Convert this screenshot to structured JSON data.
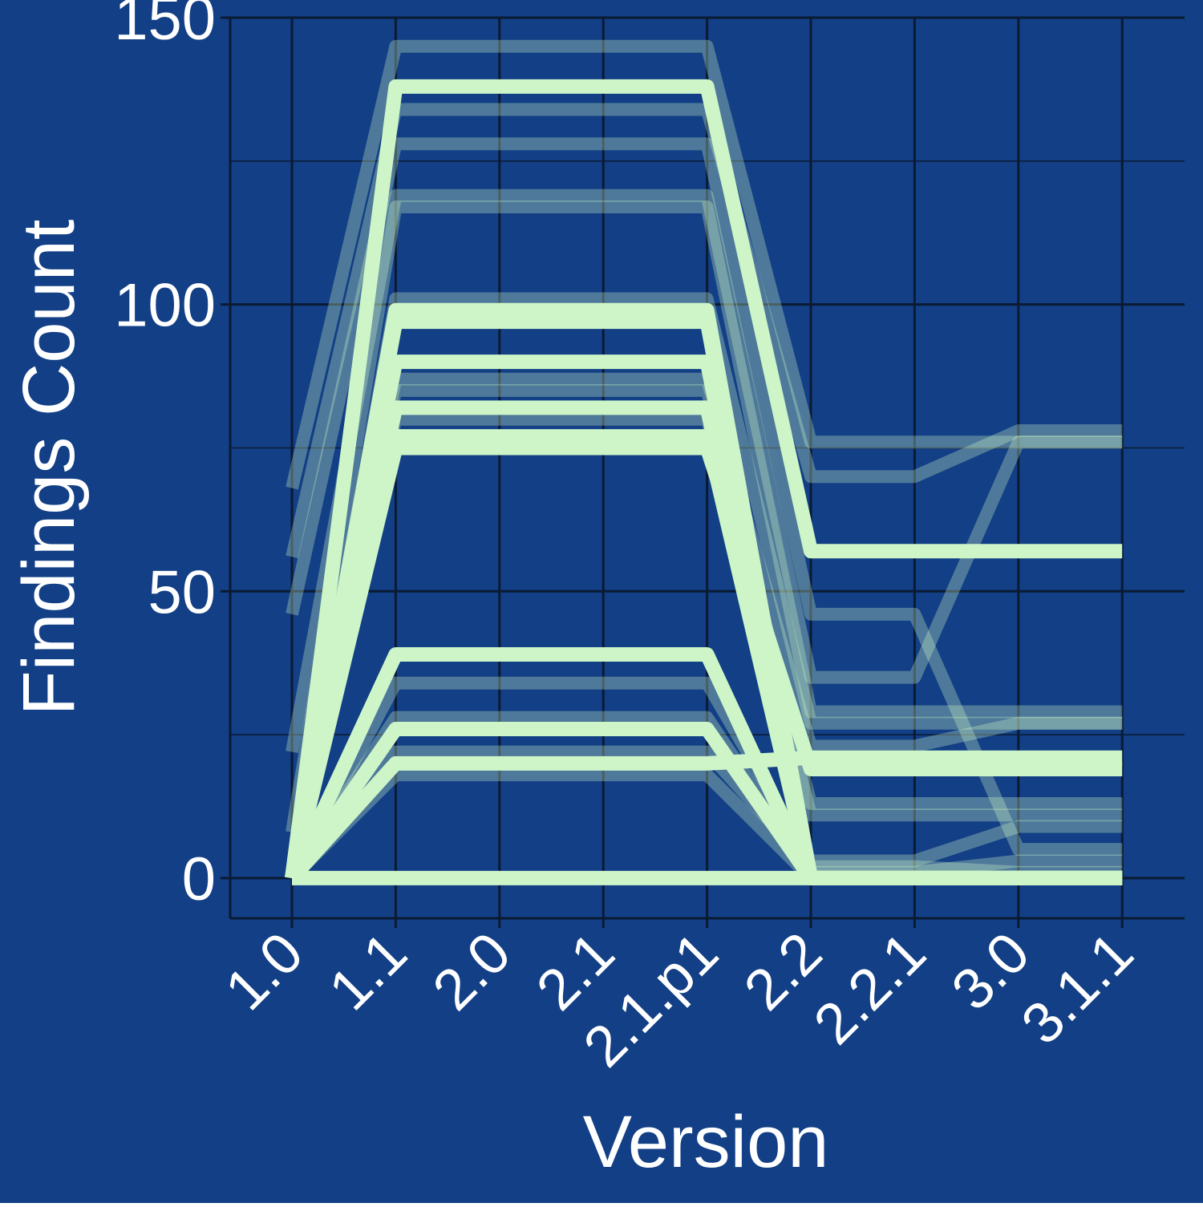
{
  "colors": {
    "background": "#123f85",
    "grid": "#0b1a33",
    "line": "#cdf5c8",
    "text": "#ffffff"
  },
  "chart_data": {
    "type": "line",
    "title": "",
    "xlabel": "Version",
    "ylabel": "Findings Count",
    "categories": [
      "1.0",
      "1.1",
      "2.0",
      "2.1",
      "2.1.p1",
      "2.2",
      "2.2.1",
      "3.0",
      "3.1.1"
    ],
    "ylim": [
      -7,
      150
    ],
    "yticks": [
      0,
      50,
      100,
      150
    ],
    "grid": true,
    "legend": "none",
    "series": [
      {
        "values": [
          0,
          138,
          138,
          138,
          138,
          57,
          57,
          57,
          57
        ],
        "emphasis": true
      },
      {
        "values": [
          0,
          99,
          99,
          99,
          99,
          0,
          0,
          0,
          0
        ],
        "emphasis": true
      },
      {
        "values": [
          0,
          98,
          98,
          98,
          98,
          0,
          0,
          0,
          0
        ],
        "emphasis": true
      },
      {
        "values": [
          0,
          97,
          97,
          97,
          97,
          0,
          0,
          0,
          0
        ],
        "emphasis": true
      },
      {
        "values": [
          0,
          90,
          90,
          90,
          90,
          0,
          0,
          0,
          0
        ],
        "emphasis": true
      },
      {
        "values": [
          0,
          82,
          82,
          82,
          82,
          0,
          0,
          0,
          0
        ],
        "emphasis": true
      },
      {
        "values": [
          0,
          77,
          77,
          77,
          77,
          0,
          0,
          0,
          0
        ],
        "emphasis": true
      },
      {
        "values": [
          0,
          75,
          75,
          75,
          75,
          19,
          19,
          19,
          19
        ],
        "emphasis": true
      },
      {
        "values": [
          0,
          39,
          39,
          39,
          39,
          0,
          0,
          0,
          0
        ],
        "emphasis": true
      },
      {
        "values": [
          0,
          26,
          26,
          26,
          26,
          0,
          0,
          0,
          0
        ],
        "emphasis": true
      },
      {
        "values": [
          0,
          20,
          20,
          20,
          20,
          21,
          21,
          21,
          21
        ],
        "emphasis": true
      },
      {
        "values": [
          0,
          0,
          0,
          0,
          0,
          0,
          0,
          0,
          0
        ],
        "emphasis": true
      },
      {
        "values": [
          68,
          145,
          145,
          145,
          145,
          76,
          76,
          76,
          76
        ],
        "emphasis": false
      },
      {
        "values": [
          56,
          134,
          134,
          134,
          134,
          70,
          70,
          78,
          78
        ],
        "emphasis": false
      },
      {
        "values": [
          46,
          128,
          128,
          128,
          128,
          46,
          46,
          5,
          5
        ],
        "emphasis": false
      },
      {
        "values": [
          22,
          119,
          119,
          119,
          119,
          35,
          35,
          76,
          76
        ],
        "emphasis": false
      },
      {
        "values": [
          8,
          117,
          117,
          117,
          117,
          29,
          29,
          29,
          29
        ],
        "emphasis": false
      },
      {
        "values": [
          0,
          101,
          101,
          101,
          101,
          27,
          27,
          27,
          27
        ],
        "emphasis": false
      },
      {
        "values": [
          0,
          87,
          87,
          87,
          87,
          23,
          23,
          27,
          27
        ],
        "emphasis": false
      },
      {
        "values": [
          0,
          85,
          85,
          85,
          85,
          13,
          13,
          13,
          13
        ],
        "emphasis": false
      },
      {
        "values": [
          0,
          80,
          80,
          80,
          80,
          11,
          11,
          11,
          11
        ],
        "emphasis": false
      },
      {
        "values": [
          0,
          34,
          34,
          34,
          34,
          3,
          3,
          9,
          9
        ],
        "emphasis": false
      },
      {
        "values": [
          0,
          28,
          28,
          28,
          28,
          1,
          1,
          3,
          3
        ],
        "emphasis": false
      },
      {
        "values": [
          0,
          22,
          22,
          22,
          22,
          2,
          2,
          1,
          1
        ],
        "emphasis": false
      },
      {
        "values": [
          0,
          18,
          18,
          18,
          18,
          0,
          0,
          0,
          0
        ],
        "emphasis": false
      }
    ]
  }
}
